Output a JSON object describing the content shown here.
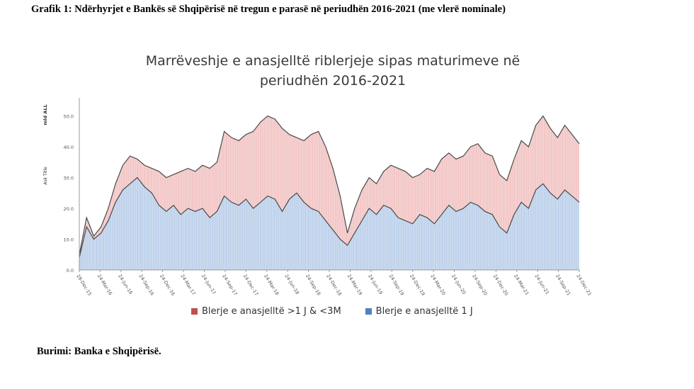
{
  "document": {
    "heading": "Grafik 1: Ndërhyrjet e Bankës së Shqipërisë në tregun e parasë në periudhën 2016-2021 (me vlerë nominale)",
    "source": "Burimi: Banka e Shqipërisë."
  },
  "colors": {
    "series_upper": "#f2c4c4",
    "series_lower": "#bcd0ea",
    "line": "#4a4a4a",
    "legend_upper": "#c0504d",
    "legend_lower": "#4f81bd"
  },
  "chart_data": {
    "type": "area",
    "title_line1": "Marrëveshje e anasjelltë riblerjeje sipas maturimeve në",
    "title_line2": "periudhën 2016-2021",
    "ylabel_top": "mld ALL",
    "ylabel_bottom": "Ask Title",
    "ylim": [
      0,
      55
    ],
    "yticks": [
      "0.0",
      "10.0",
      "20.0",
      "30.0",
      "40.0",
      "50.0"
    ],
    "x_tick_labels": [
      "28-Dec-15",
      "24-Mar-16",
      "24-Jun-16",
      "24-Sep-16",
      "24-Dec-16",
      "24-Mar-17",
      "24-Jun-17",
      "24-Sep-17",
      "24-Dec-17",
      "24-Mar-18",
      "24-Jun-18",
      "24-Sep-18",
      "24-Dec-18",
      "24-Mar-19",
      "24-Jun-19",
      "24-Sep-19",
      "24-Dec-19",
      "24-Mar-20",
      "24-Jun-20",
      "24-Sep-20",
      "24-Dec-20",
      "24-Mar-21",
      "24-Jun-21",
      "24-Sep-21",
      "24-Dec-21"
    ],
    "legend_placement": "bottom",
    "series": [
      {
        "name": "Blerje e anasjelltë 1 J",
        "values": [
          4.0,
          14.0,
          10.0,
          12.0,
          16.0,
          22.0,
          26.0,
          28.0,
          30.0,
          27.0,
          25.0,
          21.0,
          19.0,
          21.0,
          18.0,
          20.0,
          19.0,
          20.0,
          17.0,
          19.0,
          24.0,
          22.0,
          21.0,
          23.0,
          20.0,
          22.0,
          24.0,
          23.0,
          19.0,
          23.0,
          25.0,
          22.0,
          20.0,
          19.0,
          16.0,
          13.0,
          10.0,
          8.0,
          12.0,
          16.0,
          20.0,
          18.0,
          21.0,
          20.0,
          17.0,
          16.0,
          15.0,
          18.0,
          17.0,
          15.0,
          18.0,
          21.0,
          19.0,
          20.0,
          22.0,
          21.0,
          19.0,
          18.0,
          14.0,
          12.0,
          18.0,
          22.0,
          20.0,
          26.0,
          28.0,
          25.0,
          23.0,
          26.0,
          24.0,
          22.0
        ]
      },
      {
        "name": "Blerje e anasjelltë >1 J & <3M",
        "values": [
          5.0,
          17.0,
          11.0,
          14.0,
          20.0,
          28.0,
          34.0,
          37.0,
          36.0,
          34.0,
          33.0,
          32.0,
          30.0,
          31.0,
          32.0,
          33.0,
          32.0,
          34.0,
          33.0,
          35.0,
          45.0,
          43.0,
          42.0,
          44.0,
          45.0,
          48.0,
          50.0,
          49.0,
          46.0,
          44.0,
          43.0,
          42.0,
          44.0,
          45.0,
          40.0,
          33.0,
          24.0,
          12.0,
          20.0,
          26.0,
          30.0,
          28.0,
          32.0,
          34.0,
          33.0,
          32.0,
          30.0,
          31.0,
          33.0,
          32.0,
          36.0,
          38.0,
          36.0,
          37.0,
          40.0,
          41.0,
          38.0,
          37.0,
          31.0,
          29.0,
          36.0,
          42.0,
          40.0,
          47.0,
          50.0,
          46.0,
          43.0,
          47.0,
          44.0,
          41.0
        ]
      }
    ]
  }
}
